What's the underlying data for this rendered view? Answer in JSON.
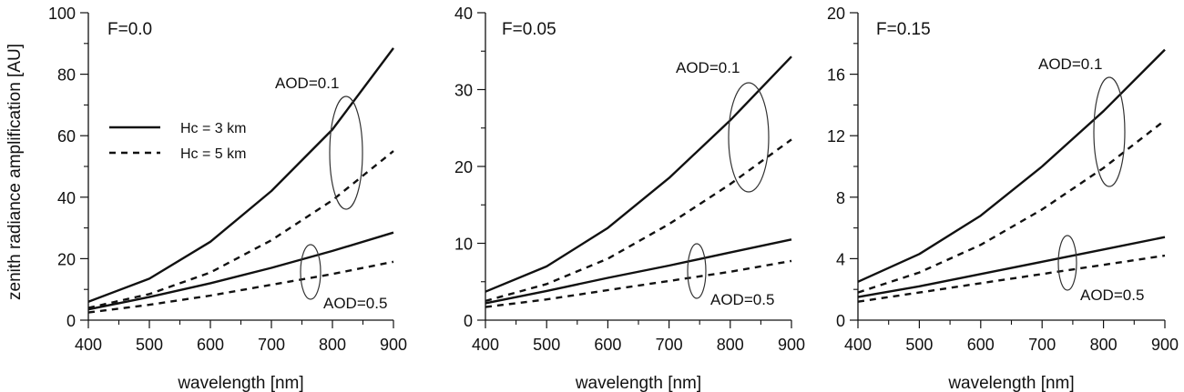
{
  "chart_data": [
    {
      "type": "line",
      "title": "F=0.0",
      "xlabel": "wavelength [nm]",
      "ylabel": "zenith radiance amplification [AU]",
      "xlim": [
        400,
        900
      ],
      "ylim": [
        0,
        100
      ],
      "xticks": [
        400,
        500,
        600,
        700,
        800,
        900
      ],
      "yticks": [
        0,
        20,
        40,
        60,
        80,
        100
      ],
      "x": [
        400,
        500,
        600,
        700,
        800,
        900
      ],
      "series": [
        {
          "group": "AOD=0.1",
          "style": "solid",
          "values": [
            6,
            13.5,
            25.5,
            42,
            62,
            88.5
          ]
        },
        {
          "group": "AOD=0.1",
          "style": "dashed",
          "values": [
            4,
            8.5,
            15.5,
            26,
            39,
            55
          ]
        },
        {
          "group": "AOD=0.5",
          "style": "solid",
          "values": [
            3.5,
            7.5,
            12,
            17,
            22.5,
            28.5
          ]
        },
        {
          "group": "AOD=0.5",
          "style": "dashed",
          "values": [
            2.5,
            5,
            8,
            11.5,
            15,
            19
          ]
        }
      ],
      "annotations": [
        "AOD=0.1",
        "AOD=0.5"
      ],
      "legend": {
        "position": "upper-left",
        "entries": [
          {
            "label": "Hc = 3 km",
            "style": "solid"
          },
          {
            "label": "Hc = 5 km",
            "style": "dashed"
          }
        ]
      }
    },
    {
      "type": "line",
      "title": "F=0.05",
      "xlabel": "wavelength [nm]",
      "ylabel": "",
      "xlim": [
        400,
        900
      ],
      "ylim": [
        0,
        40
      ],
      "xticks": [
        400,
        500,
        600,
        700,
        800,
        900
      ],
      "yticks": [
        0,
        10,
        20,
        30,
        40
      ],
      "x": [
        400,
        500,
        600,
        700,
        800,
        900
      ],
      "series": [
        {
          "group": "AOD=0.1",
          "style": "solid",
          "values": [
            3.7,
            7,
            12,
            18.5,
            26,
            34.3
          ]
        },
        {
          "group": "AOD=0.1",
          "style": "dashed",
          "values": [
            2.5,
            4.7,
            8,
            12.5,
            17.7,
            23.5
          ]
        },
        {
          "group": "AOD=0.5",
          "style": "solid",
          "values": [
            2.2,
            3.8,
            5.5,
            7.1,
            8.8,
            10.5
          ]
        },
        {
          "group": "AOD=0.5",
          "style": "dashed",
          "values": [
            1.7,
            2.7,
            3.9,
            5.1,
            6.3,
            7.7
          ]
        }
      ],
      "annotations": [
        "AOD=0.1",
        "AOD=0.5"
      ]
    },
    {
      "type": "line",
      "title": "F=0.15",
      "xlabel": "wavelength [nm]",
      "ylabel": "",
      "xlim": [
        400,
        900
      ],
      "ylim": [
        0,
        20
      ],
      "xticks": [
        400,
        500,
        600,
        700,
        800,
        900
      ],
      "yticks": [
        0,
        4,
        8,
        12,
        16,
        20
      ],
      "x": [
        400,
        500,
        600,
        700,
        800,
        900
      ],
      "series": [
        {
          "group": "AOD=0.1",
          "style": "solid",
          "values": [
            2.5,
            4.3,
            6.8,
            10,
            13.6,
            17.6
          ]
        },
        {
          "group": "AOD=0.1",
          "style": "dashed",
          "values": [
            1.8,
            3.1,
            4.9,
            7.2,
            9.9,
            13
          ]
        },
        {
          "group": "AOD=0.5",
          "style": "solid",
          "values": [
            1.5,
            2.2,
            3,
            3.8,
            4.6,
            5.4
          ]
        },
        {
          "group": "AOD=0.5",
          "style": "dashed",
          "values": [
            1.2,
            1.8,
            2.4,
            3,
            3.6,
            4.2
          ]
        }
      ],
      "annotations": [
        "AOD=0.1",
        "AOD=0.5"
      ]
    }
  ]
}
